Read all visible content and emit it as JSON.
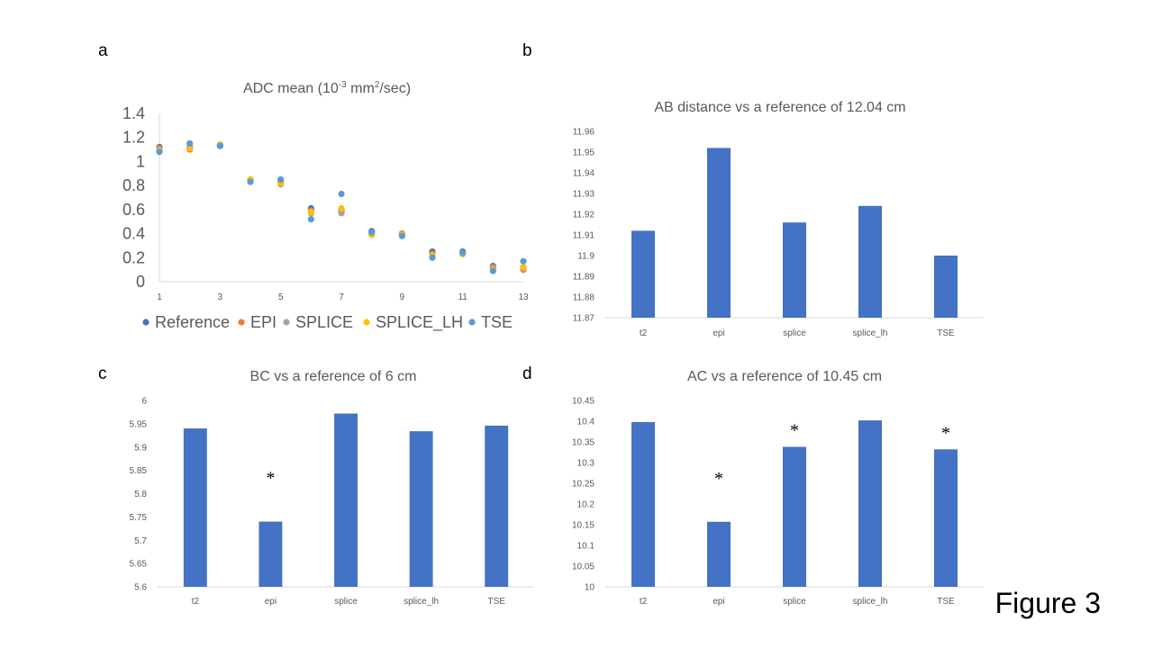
{
  "figure_label": "Figure 3",
  "panel_letters": [
    "a",
    "b",
    "c",
    "d"
  ],
  "colors": {
    "bar": "#4472C4",
    "axis": "#D9D9D9",
    "text": "#595959"
  },
  "chart_data": [
    {
      "id": "a",
      "type": "scatter",
      "title": "ADC mean (10-3 mm2/sec)",
      "title_parts": {
        "pre": "ADC mean  (10",
        "sup1": "-3",
        "mid": " mm",
        "sup2": "2",
        "post": "/sec)"
      },
      "xlim": [
        1,
        13
      ],
      "x_ticks": [
        "1",
        "3",
        "5",
        "7",
        "9",
        "11",
        "13"
      ],
      "ylim": [
        0,
        1.4
      ],
      "y_ticks": [
        "0",
        "0.2",
        "0.4",
        "0.6",
        "0.8",
        "1",
        "1.2",
        "1.4"
      ],
      "x": [
        1,
        2,
        3,
        4,
        5,
        6,
        7,
        8,
        9,
        10,
        11,
        12,
        13
      ],
      "series": [
        {
          "name": "Reference",
          "color": "#4472C4",
          "values": [
            1.12,
            1.12,
            1.13,
            0.84,
            0.84,
            0.61,
            0.6,
            0.42,
            0.4,
            0.25,
            0.25,
            0.13,
            0.12
          ]
        },
        {
          "name": "EPI",
          "color": "#ED7D31",
          "values": [
            1.11,
            1.1,
            1.14,
            0.85,
            0.82,
            0.59,
            0.58,
            0.41,
            0.4,
            0.23,
            0.24,
            0.12,
            0.1
          ]
        },
        {
          "name": "SPLICE",
          "color": "#A5A5A5",
          "values": [
            1.1,
            1.11,
            1.13,
            0.84,
            0.81,
            0.57,
            0.57,
            0.39,
            0.39,
            0.22,
            0.23,
            0.11,
            0.11
          ]
        },
        {
          "name": "SPLICE_LH",
          "color": "#FFC000",
          "values": [
            1.09,
            1.11,
            1.14,
            0.85,
            0.82,
            0.58,
            0.61,
            0.39,
            0.39,
            0.22,
            0.23,
            0.1,
            0.12
          ]
        },
        {
          "name": "TSE",
          "color": "#5B9BD5",
          "values": [
            1.08,
            1.15,
            1.13,
            0.83,
            0.85,
            0.52,
            0.73,
            0.41,
            0.38,
            0.2,
            0.24,
            0.09,
            0.17
          ]
        }
      ]
    },
    {
      "id": "b",
      "type": "bar",
      "title": "AB distance vs a reference of 12.04 cm",
      "categories": [
        "t2",
        "epi",
        "splice",
        "splice_lh",
        "TSE"
      ],
      "values": [
        11.912,
        11.952,
        11.916,
        11.924,
        11.9
      ],
      "ylim": [
        11.87,
        11.96
      ],
      "y_ticks": [
        "11.87",
        "11.88",
        "11.89",
        "11.9",
        "11.91",
        "11.92",
        "11.93",
        "11.94",
        "11.95",
        "11.96"
      ],
      "significant": [
        false,
        false,
        false,
        false,
        false
      ]
    },
    {
      "id": "c",
      "type": "bar",
      "title": "BC vs a reference of 6 cm",
      "categories": [
        "t2",
        "epi",
        "splice",
        "splice_lh",
        "TSE"
      ],
      "values": [
        5.94,
        5.74,
        5.972,
        5.934,
        5.946
      ],
      "ylim": [
        5.6,
        6
      ],
      "y_ticks": [
        "5.6",
        "5.65",
        "5.7",
        "5.75",
        "5.8",
        "5.85",
        "5.9",
        "5.95",
        "6"
      ],
      "significant": [
        false,
        true,
        false,
        false,
        false
      ],
      "marker": "*"
    },
    {
      "id": "d",
      "type": "bar",
      "title": "AC vs a reference of 10.45 cm",
      "categories": [
        "t2",
        "epi",
        "splice",
        "splice_lh",
        "TSE"
      ],
      "values": [
        10.398,
        10.157,
        10.338,
        10.402,
        10.332
      ],
      "ylim": [
        10,
        10.45
      ],
      "y_ticks": [
        "10",
        "10.05",
        "10.1",
        "10.15",
        "10.2",
        "10.25",
        "10.3",
        "10.35",
        "10.4",
        "10.45"
      ],
      "significant": [
        false,
        true,
        true,
        false,
        true
      ],
      "marker": "*"
    }
  ]
}
